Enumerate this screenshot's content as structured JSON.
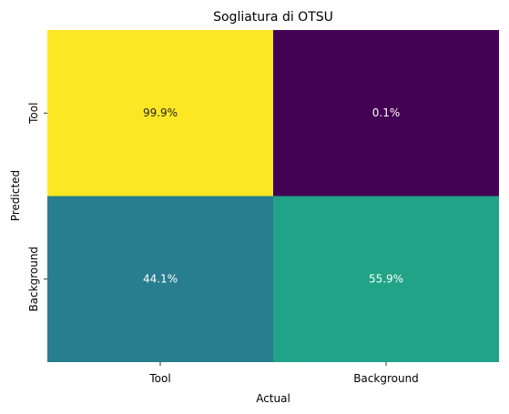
{
  "chart_data": {
    "type": "heatmap",
    "title": "Sogliatura di OTSU",
    "xlabel": "Actual",
    "ylabel": "Predicted",
    "x_categories": [
      "Tool",
      "Background"
    ],
    "y_categories": [
      "Tool",
      "Background"
    ],
    "values": [
      [
        99.9,
        0.1
      ],
      [
        44.1,
        55.9
      ]
    ],
    "cell_labels": [
      [
        "99.9%",
        "0.1%"
      ],
      [
        "44.1%",
        "55.9%"
      ]
    ],
    "colormap": "viridis",
    "cell_colors": [
      [
        "#fde725",
        "#440154"
      ],
      [
        "#287d8e",
        "#20a386"
      ]
    ],
    "label_colors": [
      [
        "#262626",
        "#ffffff"
      ],
      [
        "#ffffff",
        "#ffffff"
      ]
    ],
    "colorbar": false
  }
}
